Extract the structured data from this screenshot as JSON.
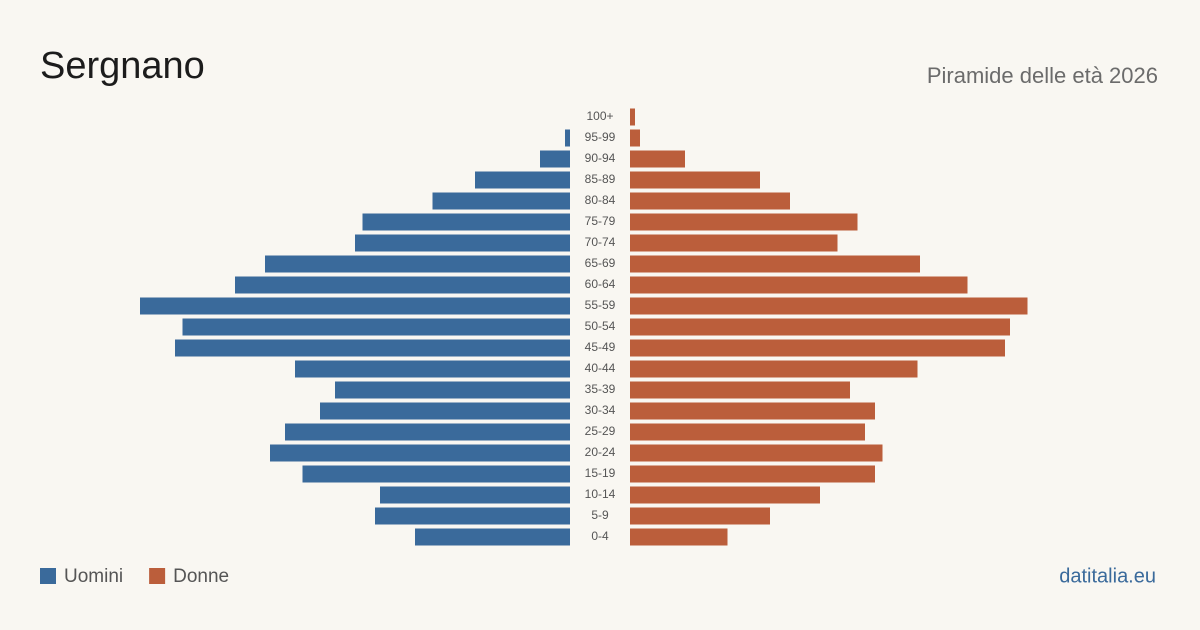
{
  "chart_data": {
    "type": "pyramid",
    "title": "Sergnano",
    "subtitle": "Piramide delle età 2026",
    "categories": [
      "0-4",
      "5-9",
      "10-14",
      "15-19",
      "20-24",
      "25-29",
      "30-34",
      "35-39",
      "40-44",
      "45-49",
      "50-54",
      "55-59",
      "60-64",
      "65-69",
      "70-74",
      "75-79",
      "80-84",
      "85-89",
      "90-94",
      "95-99",
      "100+"
    ],
    "series": [
      {
        "name": "Uomini",
        "color": "#3a6a9b",
        "values": [
          62,
          78,
          76,
          107,
          120,
          114,
          100,
          94,
          110,
          158,
          155,
          172,
          134,
          122,
          86,
          83,
          55,
          38,
          12,
          2,
          0
        ]
      },
      {
        "name": "Donne",
        "color": "#bb5e3b",
        "values": [
          39,
          56,
          76,
          98,
          101,
          94,
          98,
          88,
          115,
          150,
          152,
          159,
          135,
          116,
          83,
          91,
          64,
          52,
          22,
          4,
          2
        ]
      }
    ],
    "source": "datitalia.eu"
  }
}
